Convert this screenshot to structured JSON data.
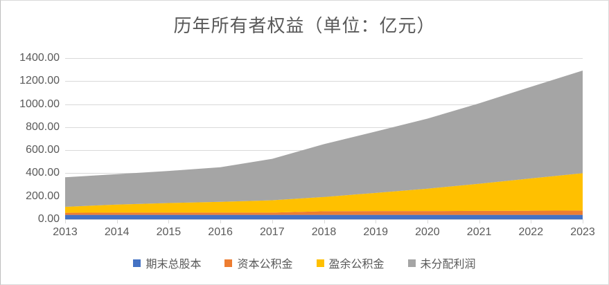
{
  "chart_data": {
    "type": "area",
    "stacked": true,
    "title": "历年所有者权益（单位：亿元）",
    "xlabel": "",
    "ylabel": "",
    "x": [
      2013,
      2014,
      2015,
      2016,
      2017,
      2018,
      2019,
      2020,
      2021,
      2022,
      2023
    ],
    "series": [
      {
        "name": "期末总股本",
        "color": "#4472C4",
        "values": [
          38,
          38,
          38,
          38,
          38,
          38,
          38,
          38,
          38,
          38,
          38
        ]
      },
      {
        "name": "资本公积金",
        "color": "#ED7D31",
        "values": [
          18,
          20,
          20,
          20,
          20,
          32,
          33,
          33,
          35,
          36,
          38
        ]
      },
      {
        "name": "盈余公积金",
        "color": "#FFC000",
        "values": [
          52,
          70,
          83,
          94,
          107,
          124,
          158,
          195,
          236,
          281,
          324
        ]
      },
      {
        "name": "未分配利润",
        "color": "#A5A5A5",
        "values": [
          257,
          264,
          279,
          300,
          360,
          459,
          533,
          608,
          698,
          796,
          892
        ]
      }
    ],
    "stack_totals": [
      365,
      392,
      420,
      452,
      525,
      653,
      762,
      874,
      1007,
      1151,
      1292
    ],
    "ylim": [
      0,
      1400
    ],
    "ytick_step": 200,
    "ytick_labels": [
      "0.00",
      "200.00",
      "400.00",
      "600.00",
      "800.00",
      "1000.00",
      "1200.00",
      "1400.00"
    ],
    "grid": true,
    "legend_position": "bottom",
    "colors": {
      "text": "#595959",
      "gridline": "#d9d9d9",
      "axis": "#d9d9d9"
    }
  }
}
